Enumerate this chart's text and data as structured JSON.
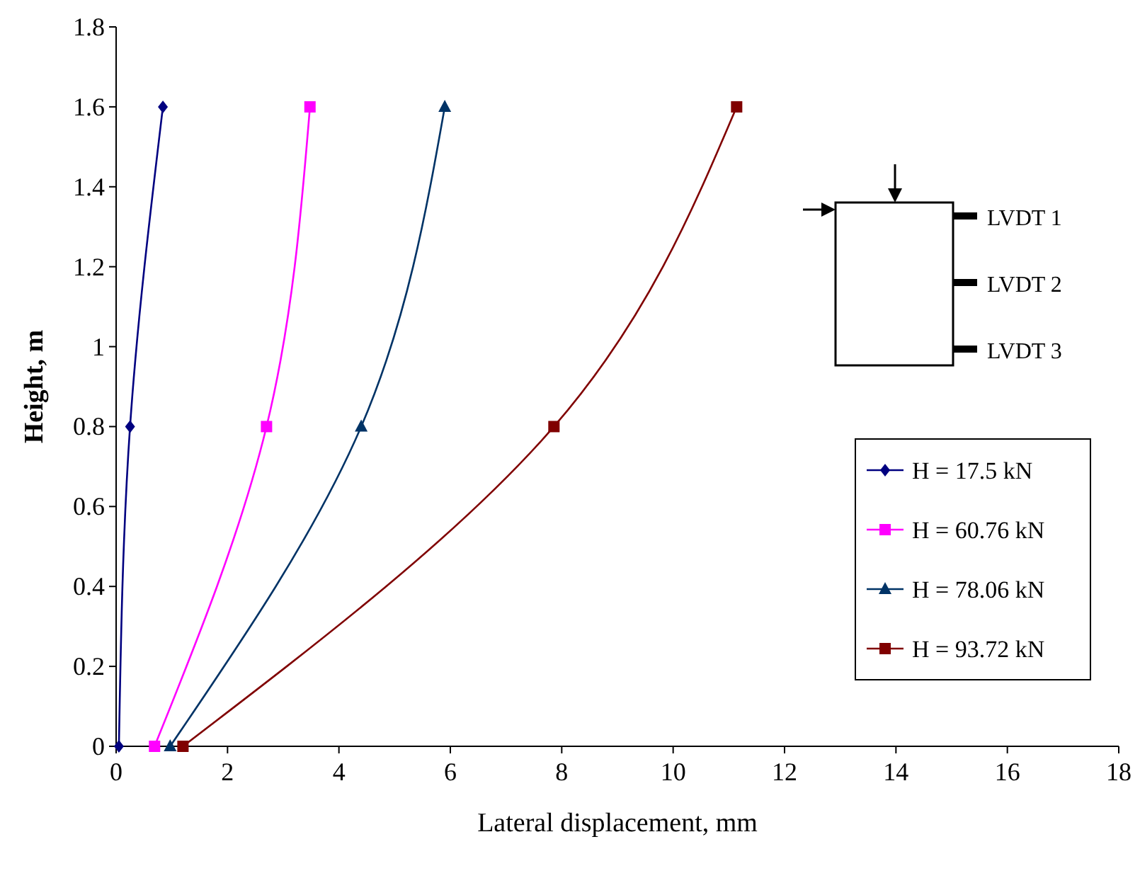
{
  "chart_data": {
    "type": "line",
    "xlabel": "Lateral displacement, mm",
    "ylabel": "Height, m",
    "xlim": [
      0,
      18
    ],
    "ylim": [
      0,
      1.8
    ],
    "xticks": [
      0,
      2,
      4,
      6,
      8,
      10,
      12,
      14,
      16,
      18
    ],
    "yticks": [
      0,
      0.2,
      0.4,
      0.6,
      0.8,
      1,
      1.2,
      1.4,
      1.6,
      1.8
    ],
    "grid": false,
    "legend": "right",
    "annotations": [
      "LVDT 1",
      "LVDT 2",
      "LVDT 3"
    ],
    "series": [
      {
        "name": "H = 17.5 kN",
        "color": "#000080",
        "marker": "diamond",
        "x": [
          0.05,
          0.25,
          0.84
        ],
        "values": [
          0,
          0.8,
          1.6
        ]
      },
      {
        "name": "H = 60.76 kN",
        "color": "#ff00ff",
        "marker": "square",
        "x": [
          0.69,
          2.7,
          3.48
        ],
        "values": [
          0,
          0.8,
          1.6
        ]
      },
      {
        "name": "H = 78.06 kN",
        "color": "#003366",
        "marker": "triangle",
        "x": [
          0.97,
          4.4,
          5.9
        ],
        "values": [
          0,
          0.8,
          1.6
        ]
      },
      {
        "name": "H = 93.72 kN",
        "color": "#800000",
        "marker": "square",
        "x": [
          1.2,
          7.86,
          11.14
        ],
        "values": [
          0,
          0.8,
          1.6
        ]
      }
    ]
  }
}
